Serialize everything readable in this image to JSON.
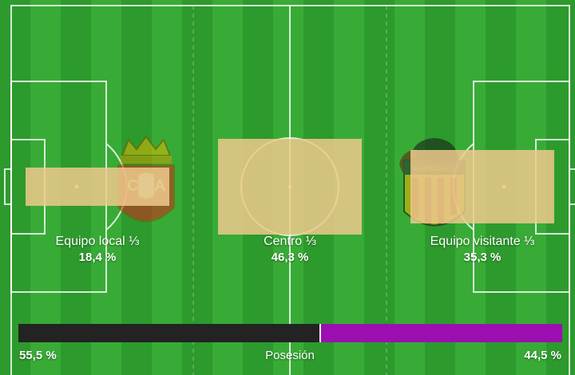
{
  "zones": [
    {
      "label": "Equipo local ⅓",
      "value": "18,4 %",
      "share": 0.184
    },
    {
      "label": "Centro ⅓",
      "value": "46,3 %",
      "share": 0.463
    },
    {
      "label": "Equipo visitante ⅓",
      "value": "35,3 %",
      "share": 0.353
    }
  ],
  "possession": {
    "label": "Posesión",
    "home_value": "55,5 %",
    "away_value": "44,5 %",
    "home_share": 0.555,
    "away_share": 0.445
  },
  "teams": {
    "home_crest": "osasuna-crest",
    "away_crest": "valencia-crest"
  },
  "colors": {
    "pitch_dark": "#2d9a2d",
    "pitch_light": "#38ab36",
    "zone_fill": "#eec98c",
    "home_possession": "#232323",
    "away_possession": "#9b0fb0"
  }
}
